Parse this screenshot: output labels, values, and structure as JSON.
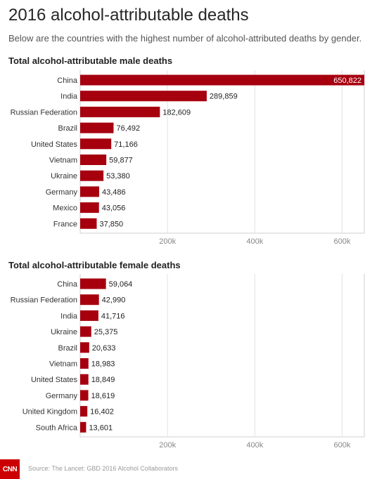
{
  "title": "2016 alcohol-attributable deaths",
  "subtitle": "Below are the countries with the highest number of alcohol-attributed deaths by gender.",
  "source": "Source: The Lancet: GBD 2016 Alcohol Collaborators",
  "logo_text": "CNN",
  "colors": {
    "bar": "#a6000f",
    "logo": "#cc0000"
  },
  "chart_data": [
    {
      "type": "bar",
      "orientation": "horizontal",
      "title": "Total alcohol-attributable male deaths",
      "categories": [
        "China",
        "India",
        "Russian Federation",
        "Brazil",
        "United States",
        "Vietnam",
        "Ukraine",
        "Germany",
        "Mexico",
        "France"
      ],
      "values": [
        650822,
        289859,
        182609,
        76492,
        71166,
        59877,
        53380,
        43486,
        43056,
        37850
      ],
      "value_labels": [
        "650,822",
        "289,859",
        "182,609",
        "76,492",
        "71,166",
        "59,877",
        "53,380",
        "43,486",
        "43,056",
        "37,850"
      ],
      "xlim": [
        0,
        650822
      ],
      "ticks": [
        200000,
        400000,
        600000
      ],
      "tick_labels": [
        "200k",
        "400k",
        "600k"
      ],
      "grid": true
    },
    {
      "type": "bar",
      "orientation": "horizontal",
      "title": "Total alcohol-attributable female deaths",
      "categories": [
        "China",
        "Russian Federation",
        "India",
        "Ukraine",
        "Brazil",
        "Vietnam",
        "United States",
        "Germany",
        "United Kingdom",
        "South Africa"
      ],
      "values": [
        59064,
        42990,
        41716,
        25375,
        20633,
        18983,
        18849,
        18619,
        16402,
        13601
      ],
      "value_labels": [
        "59,064",
        "42,990",
        "41,716",
        "25,375",
        "20,633",
        "18,983",
        "18,849",
        "18,619",
        "16,402",
        "13,601"
      ],
      "xlim": [
        0,
        650822
      ],
      "ticks": [
        200000,
        400000,
        600000
      ],
      "tick_labels": [
        "200k",
        "400k",
        "600k"
      ],
      "grid": true
    }
  ]
}
